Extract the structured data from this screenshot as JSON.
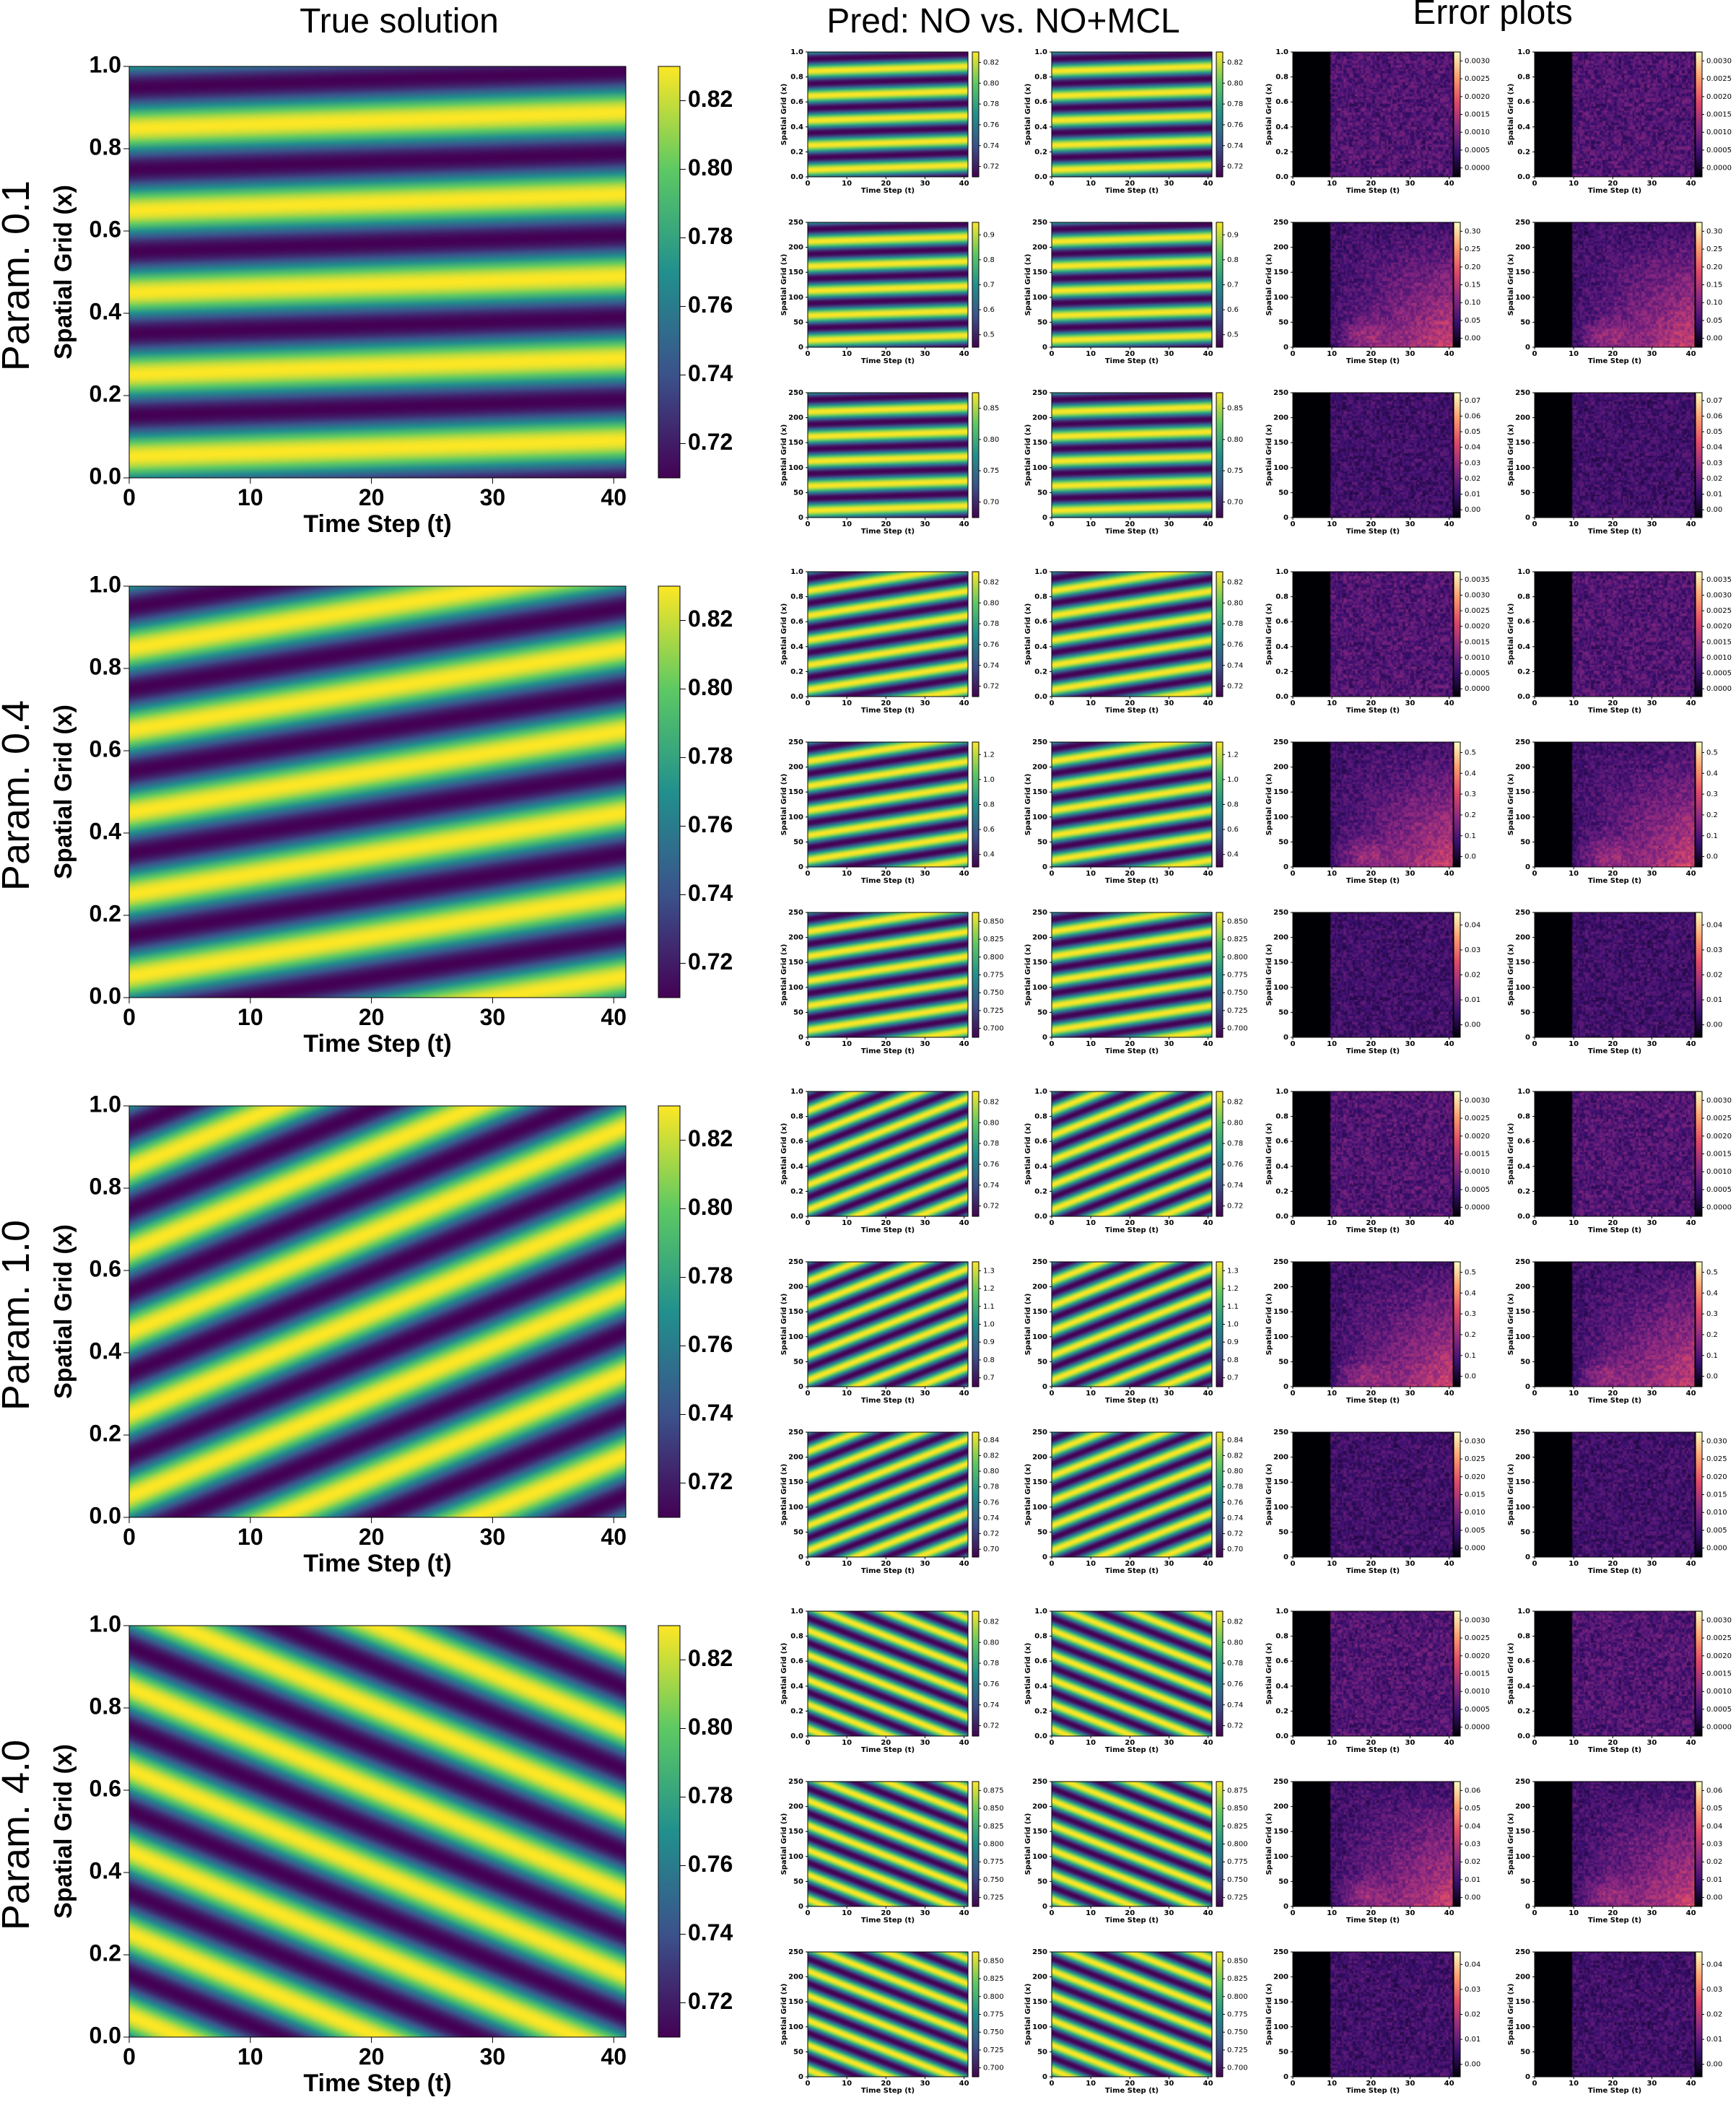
{
  "headers": {
    "true_solution": "True solution",
    "pred": "Pred: NO vs. NO+MCL",
    "error": "Error plots"
  },
  "colors": {
    "viridis": [
      "#440154",
      "#3b528b",
      "#21908d",
      "#5dc963",
      "#fde725"
    ],
    "magma": [
      "#000004",
      "#3b0f70",
      "#8c2981",
      "#de4968",
      "#fe9f6d",
      "#fcfdbf"
    ]
  },
  "chart_data": {
    "type": "heatmap",
    "description_axes": {
      "xlabel": "Time Step (t)",
      "ylabel": "Spatial Grid (x)"
    },
    "rows": [
      {
        "param": "Param. 0.1",
        "slope": 0.2,
        "freq": 5,
        "true": {
          "xticks": [
            "0",
            "10",
            "20",
            "30",
            "40"
          ],
          "yticks": [
            "0.0",
            "0.2",
            "0.4",
            "0.6",
            "0.8",
            "1.0"
          ],
          "cbar": [
            "0.72",
            "0.74",
            "0.76",
            "0.78",
            "0.80",
            "0.82"
          ]
        },
        "small": [
          {
            "yticks": [
              "0.0",
              "0.2",
              "0.4",
              "0.6",
              "0.8",
              "1.0"
            ],
            "pred_cbar": [
              "0.72",
              "0.74",
              "0.76",
              "0.78",
              "0.80",
              "0.82"
            ],
            "err_cbar": [
              "0.0000",
              "0.0005",
              "0.0010",
              "0.0015",
              "0.0020",
              "0.0025",
              "0.0030"
            ]
          },
          {
            "yticks": [
              "0",
              "50",
              "100",
              "150",
              "200",
              "250"
            ],
            "pred_cbar": [
              "0.5",
              "0.6",
              "0.7",
              "0.8",
              "0.9"
            ],
            "err_cbar": [
              "0.00",
              "0.05",
              "0.10",
              "0.15",
              "0.20",
              "0.25",
              "0.30"
            ]
          },
          {
            "yticks": [
              "0",
              "50",
              "100",
              "150",
              "200",
              "250"
            ],
            "pred_cbar": [
              "0.70",
              "0.75",
              "0.80",
              "0.85"
            ],
            "err_cbar": [
              "0.00",
              "0.01",
              "0.02",
              "0.03",
              "0.04",
              "0.05",
              "0.06",
              "0.07"
            ]
          }
        ]
      },
      {
        "param": "Param. 0.4",
        "slope": 1.0,
        "freq": 5,
        "true": {
          "xticks": [
            "0",
            "10",
            "20",
            "30",
            "40"
          ],
          "yticks": [
            "0.0",
            "0.2",
            "0.4",
            "0.6",
            "0.8",
            "1.0"
          ],
          "cbar": [
            "0.72",
            "0.74",
            "0.76",
            "0.78",
            "0.80",
            "0.82"
          ]
        },
        "small": [
          {
            "yticks": [
              "0.0",
              "0.2",
              "0.4",
              "0.6",
              "0.8",
              "1.0"
            ],
            "pred_cbar": [
              "0.72",
              "0.74",
              "0.76",
              "0.78",
              "0.80",
              "0.82"
            ],
            "err_cbar": [
              "0.0000",
              "0.0005",
              "0.0010",
              "0.0015",
              "0.0020",
              "0.0025",
              "0.0030",
              "0.0035"
            ]
          },
          {
            "yticks": [
              "0",
              "50",
              "100",
              "150",
              "200",
              "250"
            ],
            "pred_cbar": [
              "0.4",
              "0.6",
              "0.8",
              "1.0",
              "1.2"
            ],
            "err_cbar": [
              "0.0",
              "0.1",
              "0.2",
              "0.3",
              "0.4",
              "0.5"
            ]
          },
          {
            "yticks": [
              "0",
              "50",
              "100",
              "150",
              "200",
              "250"
            ],
            "pred_cbar": [
              "0.700",
              "0.725",
              "0.750",
              "0.775",
              "0.800",
              "0.825",
              "0.850"
            ],
            "err_cbar": [
              "0.00",
              "0.01",
              "0.02",
              "0.03",
              "0.04"
            ]
          }
        ]
      },
      {
        "param": "Param. 1.0",
        "slope": 2.5,
        "freq": 5,
        "true": {
          "xticks": [
            "0",
            "10",
            "20",
            "30",
            "40"
          ],
          "yticks": [
            "0.0",
            "0.2",
            "0.4",
            "0.6",
            "0.8",
            "1.0"
          ],
          "cbar": [
            "0.72",
            "0.74",
            "0.76",
            "0.78",
            "0.80",
            "0.82"
          ]
        },
        "small": [
          {
            "yticks": [
              "0.0",
              "0.2",
              "0.4",
              "0.6",
              "0.8",
              "1.0"
            ],
            "pred_cbar": [
              "0.72",
              "0.74",
              "0.76",
              "0.78",
              "0.80",
              "0.82"
            ],
            "err_cbar": [
              "0.0000",
              "0.0005",
              "0.0010",
              "0.0015",
              "0.0020",
              "0.0025",
              "0.0030"
            ]
          },
          {
            "yticks": [
              "0",
              "50",
              "100",
              "150",
              "200",
              "250"
            ],
            "pred_cbar": [
              "0.7",
              "0.8",
              "0.9",
              "1.0",
              "1.1",
              "1.2",
              "1.3"
            ],
            "err_cbar": [
              "0.0",
              "0.1",
              "0.2",
              "0.3",
              "0.4",
              "0.5"
            ]
          },
          {
            "yticks": [
              "0",
              "50",
              "100",
              "150",
              "200",
              "250"
            ],
            "pred_cbar": [
              "0.70",
              "0.72",
              "0.74",
              "0.76",
              "0.78",
              "0.80",
              "0.82",
              "0.84"
            ],
            "err_cbar": [
              "0.000",
              "0.005",
              "0.010",
              "0.015",
              "0.020",
              "0.025",
              "0.030"
            ]
          }
        ]
      },
      {
        "param": "Param. 4.0",
        "slope": -2.5,
        "freq": 5,
        "true": {
          "xticks": [
            "0",
            "10",
            "20",
            "30",
            "40"
          ],
          "yticks": [
            "0.0",
            "0.2",
            "0.4",
            "0.6",
            "0.8",
            "1.0"
          ],
          "cbar": [
            "0.72",
            "0.74",
            "0.76",
            "0.78",
            "0.80",
            "0.82"
          ]
        },
        "small": [
          {
            "yticks": [
              "0.0",
              "0.2",
              "0.4",
              "0.6",
              "0.8",
              "1.0"
            ],
            "pred_cbar": [
              "0.72",
              "0.74",
              "0.76",
              "0.78",
              "0.80",
              "0.82"
            ],
            "err_cbar": [
              "0.0000",
              "0.0005",
              "0.0010",
              "0.0015",
              "0.0020",
              "0.0025",
              "0.0030"
            ]
          },
          {
            "yticks": [
              "0",
              "50",
              "100",
              "150",
              "200",
              "250"
            ],
            "pred_cbar": [
              "0.725",
              "0.750",
              "0.775",
              "0.800",
              "0.825",
              "0.850",
              "0.875"
            ],
            "err_cbar": [
              "0.00",
              "0.01",
              "0.02",
              "0.03",
              "0.04",
              "0.05",
              "0.06"
            ]
          },
          {
            "yticks": [
              "0",
              "50",
              "100",
              "150",
              "200",
              "250"
            ],
            "pred_cbar": [
              "0.700",
              "0.725",
              "0.750",
              "0.775",
              "0.800",
              "0.825",
              "0.850"
            ],
            "err_cbar": [
              "0.00",
              "0.01",
              "0.02",
              "0.03",
              "0.04"
            ]
          }
        ]
      }
    ]
  }
}
